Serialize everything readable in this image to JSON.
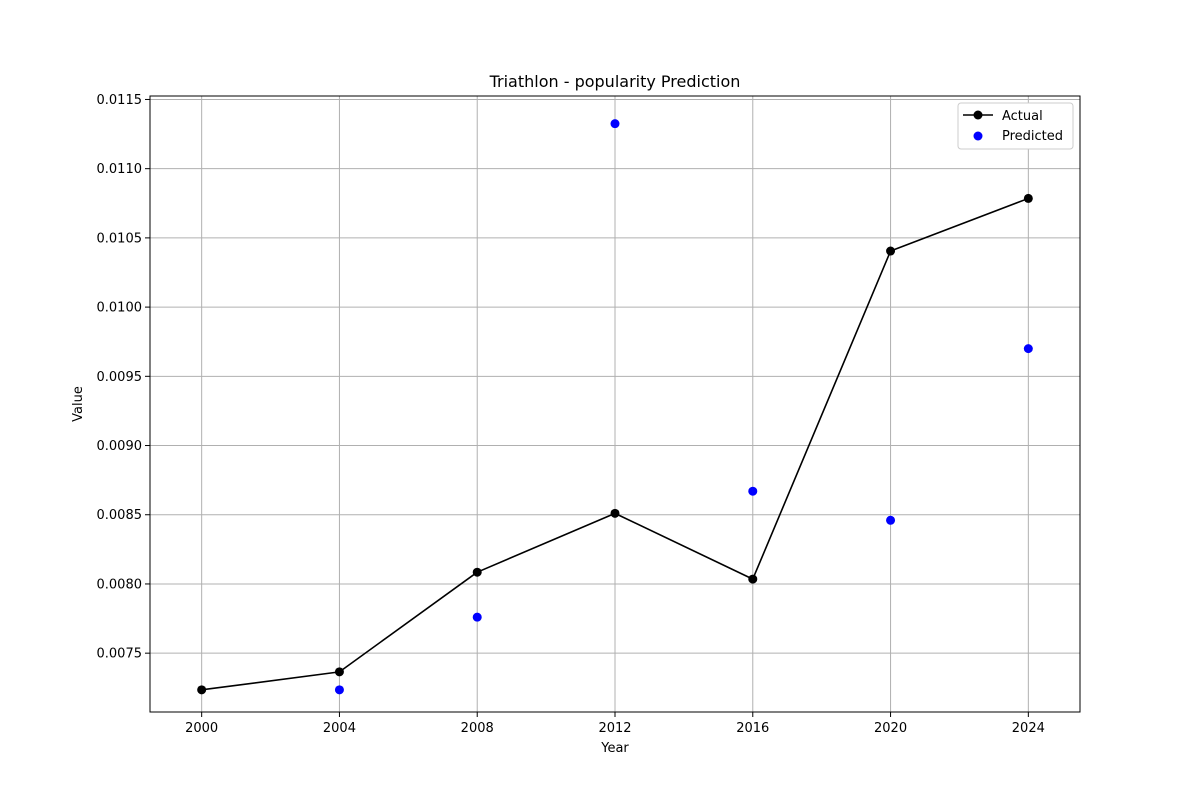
{
  "chart_data": {
    "type": "line",
    "title": "Triathlon - popularity Prediction",
    "xlabel": "Year",
    "ylabel": "Value",
    "xlim": [
      1998.5,
      2025.5
    ],
    "ylim": [
      0.007075,
      0.011525
    ],
    "xticks": [
      2000,
      2004,
      2008,
      2012,
      2016,
      2020,
      2024
    ],
    "xtick_labels": [
      "2000",
      "2004",
      "2008",
      "2012",
      "2016",
      "2020",
      "2024"
    ],
    "yticks": [
      0.0075,
      0.008,
      0.0085,
      0.009,
      0.0095,
      0.01,
      0.0105,
      0.011,
      0.0115
    ],
    "ytick_labels": [
      "0.0075",
      "0.0080",
      "0.0085",
      "0.0090",
      "0.0095",
      "0.0100",
      "0.0105",
      "0.0110",
      "0.0115"
    ],
    "grid": true,
    "legend_position": "top-right",
    "series": [
      {
        "name": "Actual",
        "kind": "line",
        "color": "#000000",
        "x": [
          2000,
          2004,
          2008,
          2012,
          2016,
          2020,
          2024
        ],
        "y": [
          0.007235,
          0.007365,
          0.008085,
          0.00851,
          0.008035,
          0.010405,
          0.010785
        ]
      },
      {
        "name": "Predicted",
        "kind": "scatter",
        "color": "#0000ff",
        "x": [
          2004,
          2008,
          2012,
          2016,
          2020,
          2024
        ],
        "y": [
          0.007235,
          0.00776,
          0.011325,
          0.00867,
          0.00846,
          0.0097
        ]
      }
    ]
  }
}
